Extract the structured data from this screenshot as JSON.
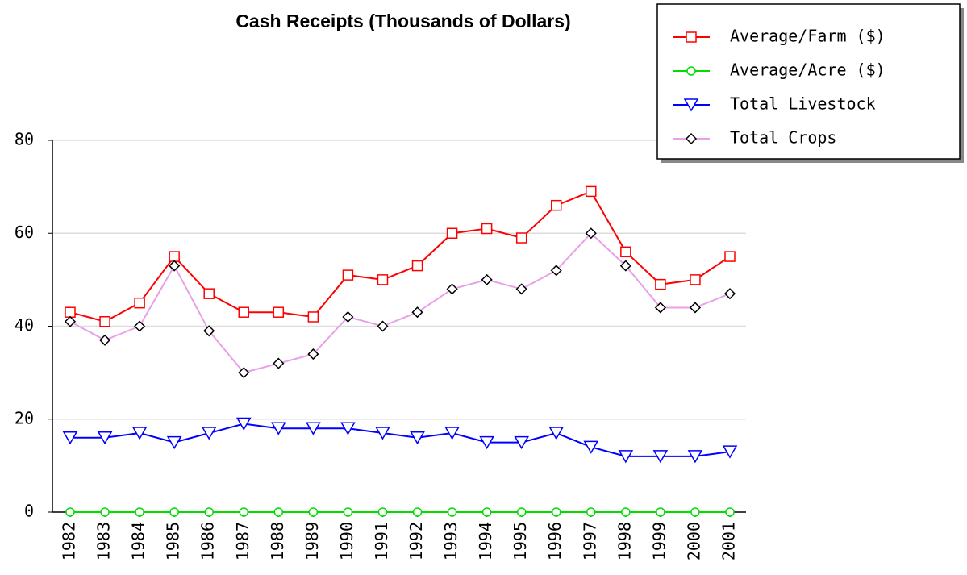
{
  "chart_data": {
    "type": "line",
    "title": "Cash Receipts (Thousands of Dollars)",
    "categories": [
      "1982",
      "1983",
      "1984",
      "1985",
      "1986",
      "1987",
      "1988",
      "1989",
      "1990",
      "1991",
      "1992",
      "1993",
      "1994",
      "1995",
      "1996",
      "1997",
      "1998",
      "1999",
      "2000",
      "2001"
    ],
    "series": [
      {
        "name": "Average/Farm ($)",
        "color": "#ff0000",
        "marker": "square",
        "values": [
          43,
          41,
          45,
          55,
          47,
          43,
          43,
          42,
          51,
          50,
          53,
          60,
          61,
          59,
          66,
          69,
          56,
          49,
          50,
          55
        ]
      },
      {
        "name": "Average/Acre ($)",
        "color": "#00dd00",
        "marker": "circle",
        "values": [
          0,
          0,
          0,
          0,
          0,
          0,
          0,
          0,
          0,
          0,
          0,
          0,
          0,
          0,
          0,
          0,
          0,
          0,
          0,
          0
        ]
      },
      {
        "name": "Total Livestock",
        "color": "#0000ff",
        "marker": "triangle-down",
        "values": [
          16,
          16,
          17,
          15,
          17,
          19,
          18,
          18,
          18,
          17,
          16,
          17,
          15,
          15,
          17,
          14,
          12,
          12,
          12,
          13
        ]
      },
      {
        "name": "Total Crops",
        "color": "#e8a0e8",
        "marker": "diamond",
        "marker_color": "#000000",
        "values": [
          41,
          37,
          40,
          53,
          39,
          30,
          32,
          34,
          42,
          40,
          43,
          48,
          50,
          48,
          52,
          60,
          53,
          44,
          44,
          47
        ]
      }
    ],
    "ylim": [
      0,
      80
    ],
    "yticks": [
      0,
      20,
      40,
      60,
      80
    ],
    "grid": true,
    "legend": "top-right"
  }
}
